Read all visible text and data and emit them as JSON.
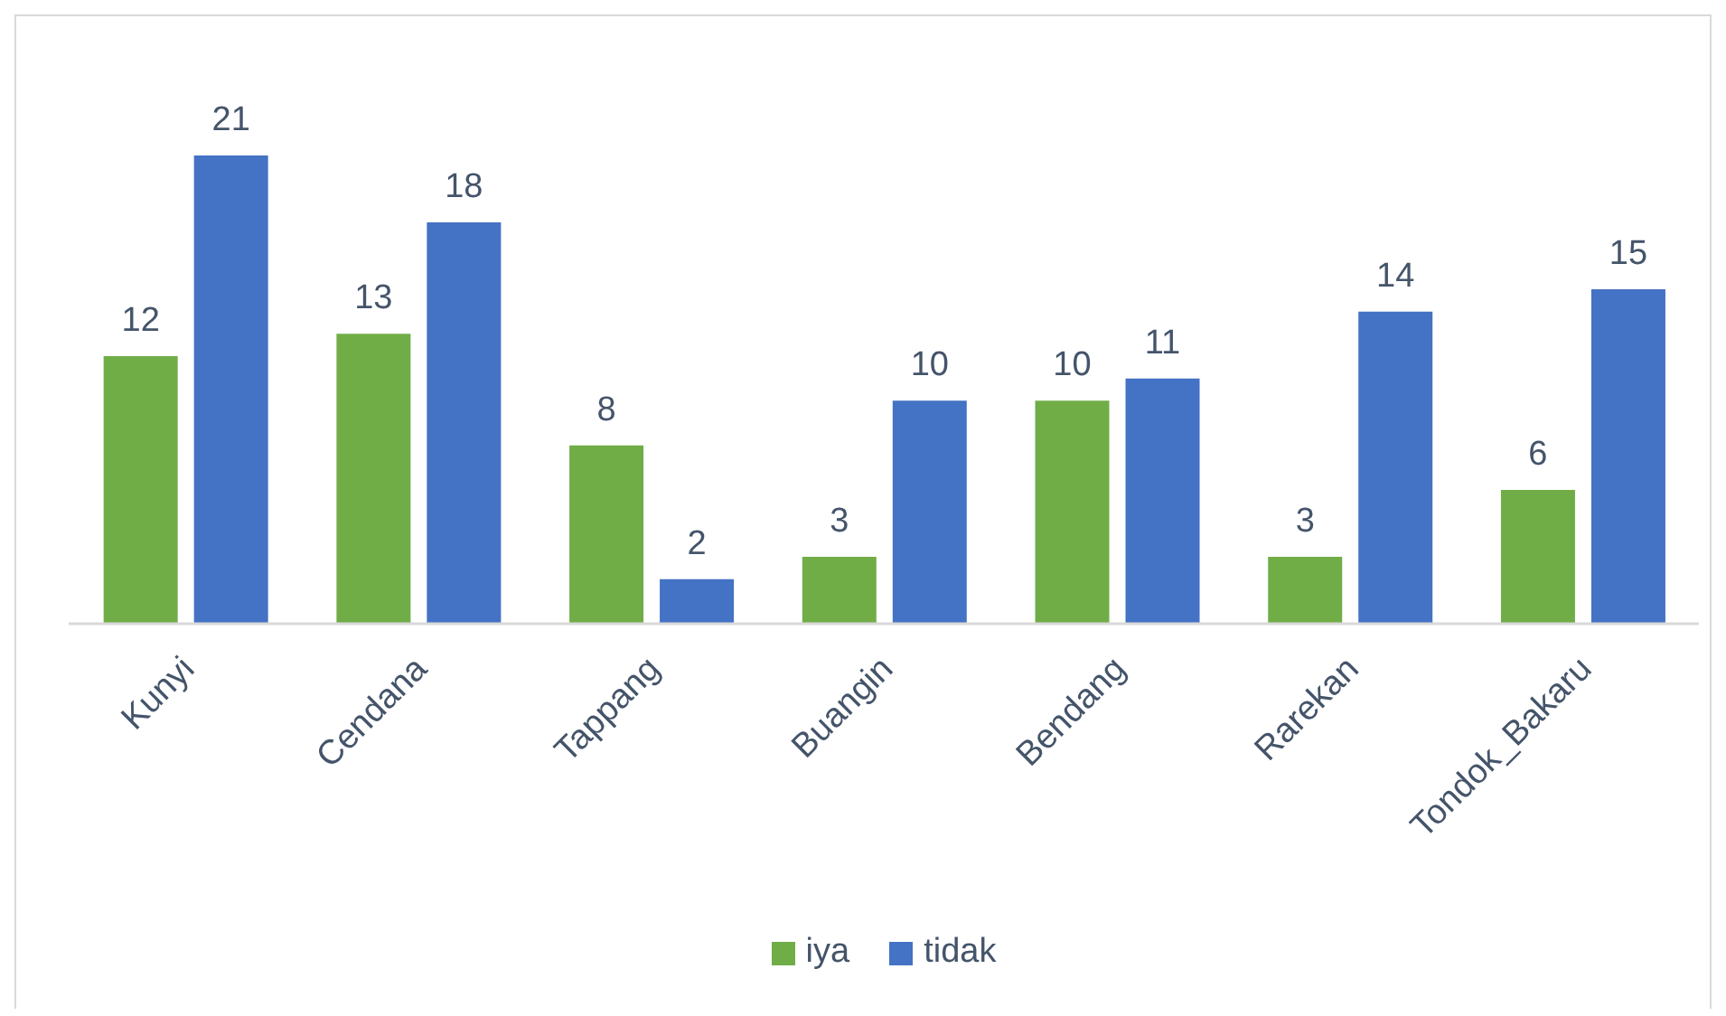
{
  "chart_data": {
    "type": "bar",
    "categories": [
      "Kunyi",
      "Cendana",
      "Tappang",
      "Buangin",
      "Bendang",
      "Rarekan",
      "Tondok_Bakaru"
    ],
    "series": [
      {
        "name": "iya",
        "color": "#70ad47",
        "values": [
          12,
          13,
          8,
          3,
          10,
          3,
          6
        ]
      },
      {
        "name": "tidak",
        "color": "#4472c4",
        "values": [
          21,
          18,
          2,
          10,
          11,
          14,
          15
        ]
      }
    ],
    "data_labels": true,
    "legend": "bottom"
  }
}
